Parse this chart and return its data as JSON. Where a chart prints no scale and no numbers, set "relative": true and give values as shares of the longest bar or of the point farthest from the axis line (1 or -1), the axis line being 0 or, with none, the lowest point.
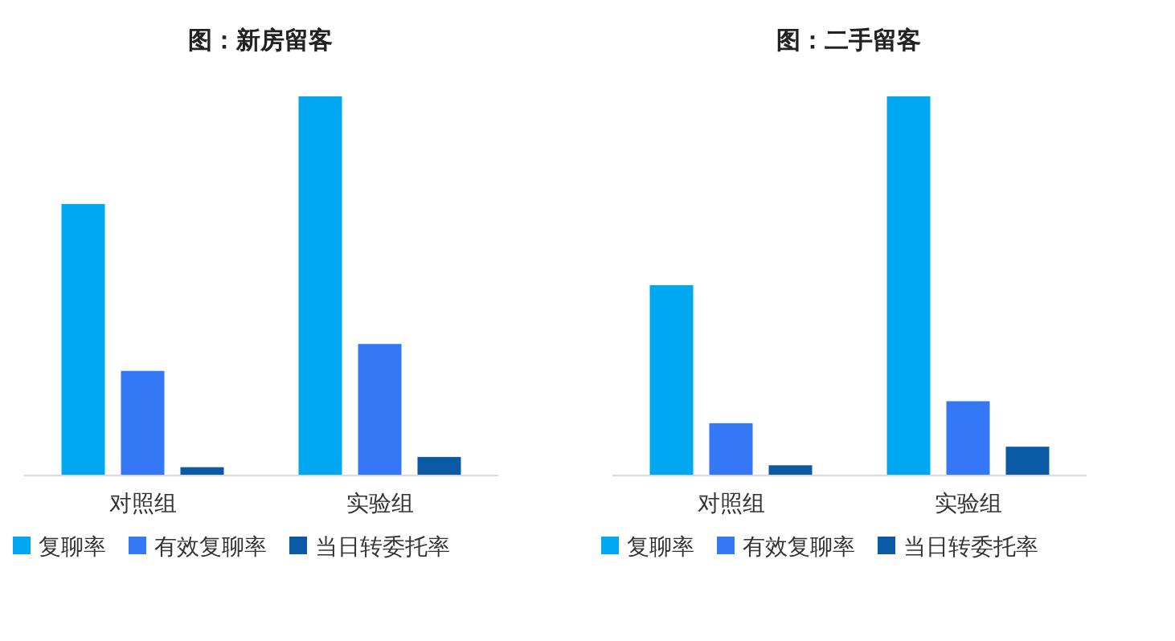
{
  "chart_data": [
    {
      "type": "bar",
      "title": "图：新房留客",
      "categories": [
        "对照组",
        "实验组"
      ],
      "relative": true,
      "legend": "bottom",
      "series": [
        {
          "name": "复聊率",
          "color": "#00a8f2",
          "values": [
            0.716,
            1
          ]
        },
        {
          "name": "有效复聊率",
          "color": "#3478f6",
          "values": [
            0.276,
            0.347
          ]
        },
        {
          "name": "当日转委托率",
          "color": "#0b5aa6",
          "values": [
            0.022,
            0.049
          ]
        }
      ]
    },
    {
      "type": "bar",
      "title": "图：二手留客",
      "categories": [
        "对照组",
        "实验组"
      ],
      "relative": true,
      "legend": "bottom",
      "series": [
        {
          "name": "复聊率",
          "color": "#00a8f2",
          "values": [
            0.502,
            1
          ]
        },
        {
          "name": "有效复聊率",
          "color": "#3478f6",
          "values": [
            0.138,
            0.196
          ]
        },
        {
          "name": "当日转委托率",
          "color": "#0b5aa6",
          "values": [
            0.027,
            0.076
          ]
        }
      ]
    }
  ]
}
